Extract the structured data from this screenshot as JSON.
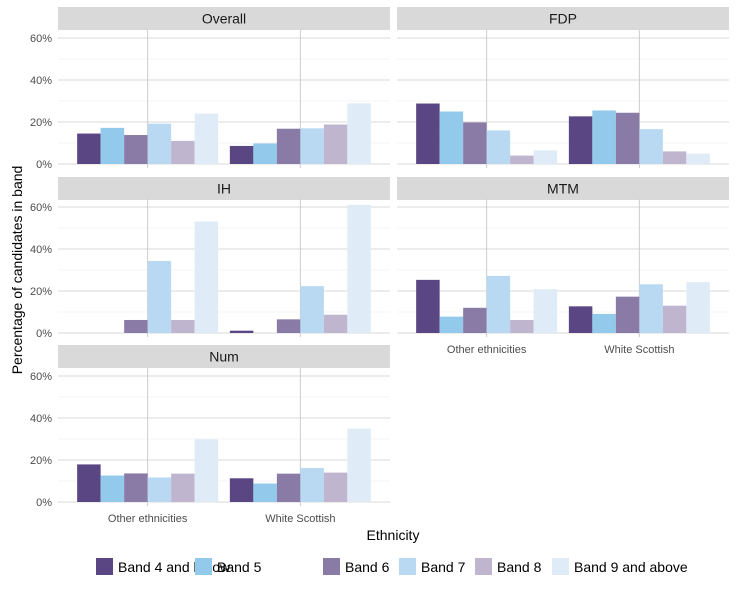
{
  "chart_data": {
    "type": "bar",
    "xlabel": "Ethnicity",
    "ylabel": "Percentage of candidates in band",
    "ylim": [
      0,
      60
    ],
    "yticks": [
      "0%",
      "20%",
      "40%",
      "60%"
    ],
    "ytick_values": [
      0,
      20,
      40,
      60
    ],
    "categories": [
      "Other ethnicities",
      "White Scottish"
    ],
    "series_names": [
      "Band 4 and below",
      "Band 5",
      "Band 6",
      "Band 7",
      "Band 8",
      "Band 9 and above"
    ],
    "colors": [
      "#5b4684",
      "#93c9ea",
      "#8a7aa6",
      "#b9d8f1",
      "#bfb5cf",
      "#dfecf8"
    ],
    "legend_position": "bottom",
    "grid": true,
    "panels": [
      {
        "title": "Overall",
        "values": [
          [
            14.5,
            17.2,
            13.8,
            19.2,
            11.0,
            24.0
          ],
          [
            8.6,
            9.8,
            16.8,
            17.0,
            18.8,
            28.9
          ]
        ]
      },
      {
        "title": "FDP",
        "values": [
          [
            28.8,
            25.0,
            19.8,
            16.0,
            4.0,
            6.5
          ],
          [
            22.7,
            25.5,
            24.4,
            16.6,
            6.0,
            4.9
          ]
        ]
      },
      {
        "title": "IH",
        "values": [
          [
            0,
            0,
            6.2,
            34.3,
            6.2,
            53.1
          ],
          [
            1.1,
            0,
            6.5,
            22.3,
            8.7,
            61.0
          ]
        ]
      },
      {
        "title": "MTM",
        "values": [
          [
            25.3,
            7.8,
            12.0,
            27.2,
            6.2,
            20.9
          ],
          [
            12.7,
            9.1,
            17.3,
            23.2,
            13.0,
            24.2
          ]
        ]
      },
      {
        "title": "Num",
        "values": [
          [
            17.9,
            12.6,
            13.6,
            11.7,
            13.5,
            29.9
          ],
          [
            11.3,
            8.8,
            13.5,
            16.2,
            14.0,
            35.0
          ]
        ]
      }
    ]
  }
}
